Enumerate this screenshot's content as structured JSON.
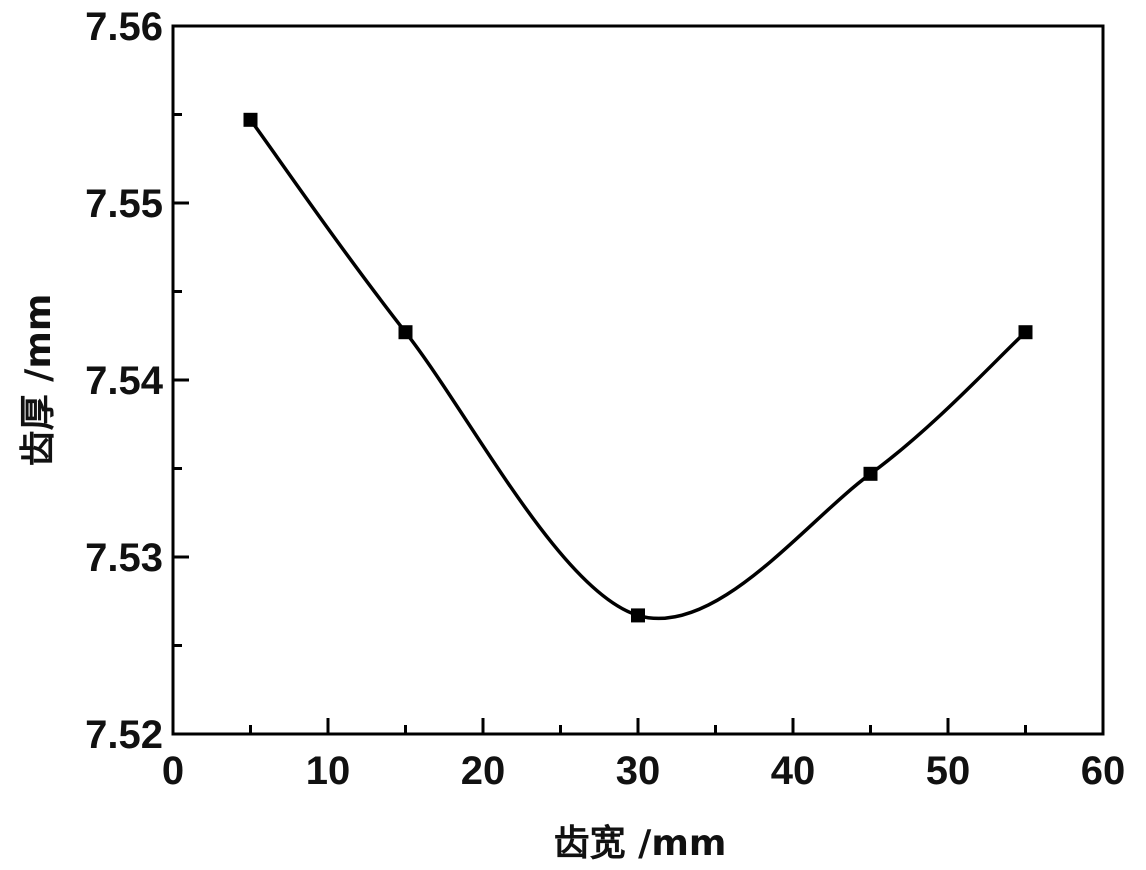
{
  "chart_data": {
    "type": "line",
    "title": "",
    "xlabel": "齿宽 /mm",
    "ylabel": "齿厚 /mm",
    "xlim": [
      0,
      60
    ],
    "ylim": [
      7.52,
      7.56
    ],
    "x_ticks": [
      "0",
      "10",
      "20",
      "30",
      "40",
      "50",
      "60"
    ],
    "y_ticks": [
      "7.52",
      "7.53",
      "7.54",
      "7.55",
      "7.56"
    ],
    "grid": false,
    "legend": "none",
    "series": [
      {
        "x": [
          5,
          15,
          30,
          45,
          55
        ],
        "y": [
          7.5547,
          7.5427,
          7.5267,
          7.5347,
          7.5427
        ],
        "marker": "square",
        "smooth": true,
        "color": "#000000"
      }
    ]
  }
}
